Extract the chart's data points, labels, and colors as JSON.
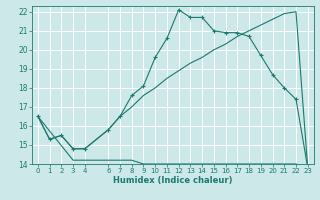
{
  "title": "",
  "xlabel": "Humidex (Indice chaleur)",
  "ylabel": "",
  "background_color": "#cce8e8",
  "grid_color": "#ffffff",
  "line_color": "#1a7a6e",
  "xlim": [
    -0.5,
    23.5
  ],
  "ylim": [
    14,
    22.3
  ],
  "xticks": [
    0,
    1,
    2,
    3,
    4,
    6,
    7,
    8,
    9,
    10,
    11,
    12,
    13,
    14,
    15,
    16,
    17,
    18,
    19,
    20,
    21,
    22,
    23
  ],
  "yticks": [
    14,
    15,
    16,
    17,
    18,
    19,
    20,
    21,
    22
  ],
  "line1_x": [
    0,
    1,
    2,
    3,
    4,
    6,
    7,
    8,
    9,
    10,
    11,
    12,
    13,
    14,
    15,
    16,
    17,
    18,
    19,
    20,
    21,
    22,
    23
  ],
  "line1_y": [
    16.5,
    15.3,
    15.5,
    14.8,
    14.8,
    15.8,
    16.5,
    17.6,
    18.1,
    19.6,
    20.6,
    22.1,
    21.7,
    21.7,
    21.0,
    20.9,
    20.9,
    20.7,
    19.7,
    18.7,
    18.0,
    17.4,
    13.8
  ],
  "line2_x": [
    0,
    1,
    2,
    3,
    4,
    6,
    7,
    8,
    9,
    10,
    11,
    12,
    13,
    14,
    15,
    16,
    17,
    18,
    19,
    20,
    21,
    22,
    23
  ],
  "line2_y": [
    16.5,
    15.3,
    15.5,
    14.8,
    14.8,
    15.8,
    16.5,
    17.0,
    17.6,
    18.0,
    18.5,
    18.9,
    19.3,
    19.6,
    20.0,
    20.3,
    20.7,
    21.0,
    21.3,
    21.6,
    21.9,
    22.0,
    13.8
  ],
  "line3_x": [
    0,
    3,
    4,
    6,
    7,
    8,
    9,
    10,
    11,
    12,
    13,
    14,
    15,
    16,
    17,
    18,
    19,
    20,
    21,
    22,
    23
  ],
  "line3_y": [
    16.5,
    14.2,
    14.2,
    14.2,
    14.2,
    14.2,
    14.0,
    14.0,
    14.0,
    14.0,
    14.0,
    14.0,
    14.0,
    14.0,
    14.0,
    14.0,
    14.0,
    14.0,
    14.0,
    14.0,
    13.8
  ]
}
